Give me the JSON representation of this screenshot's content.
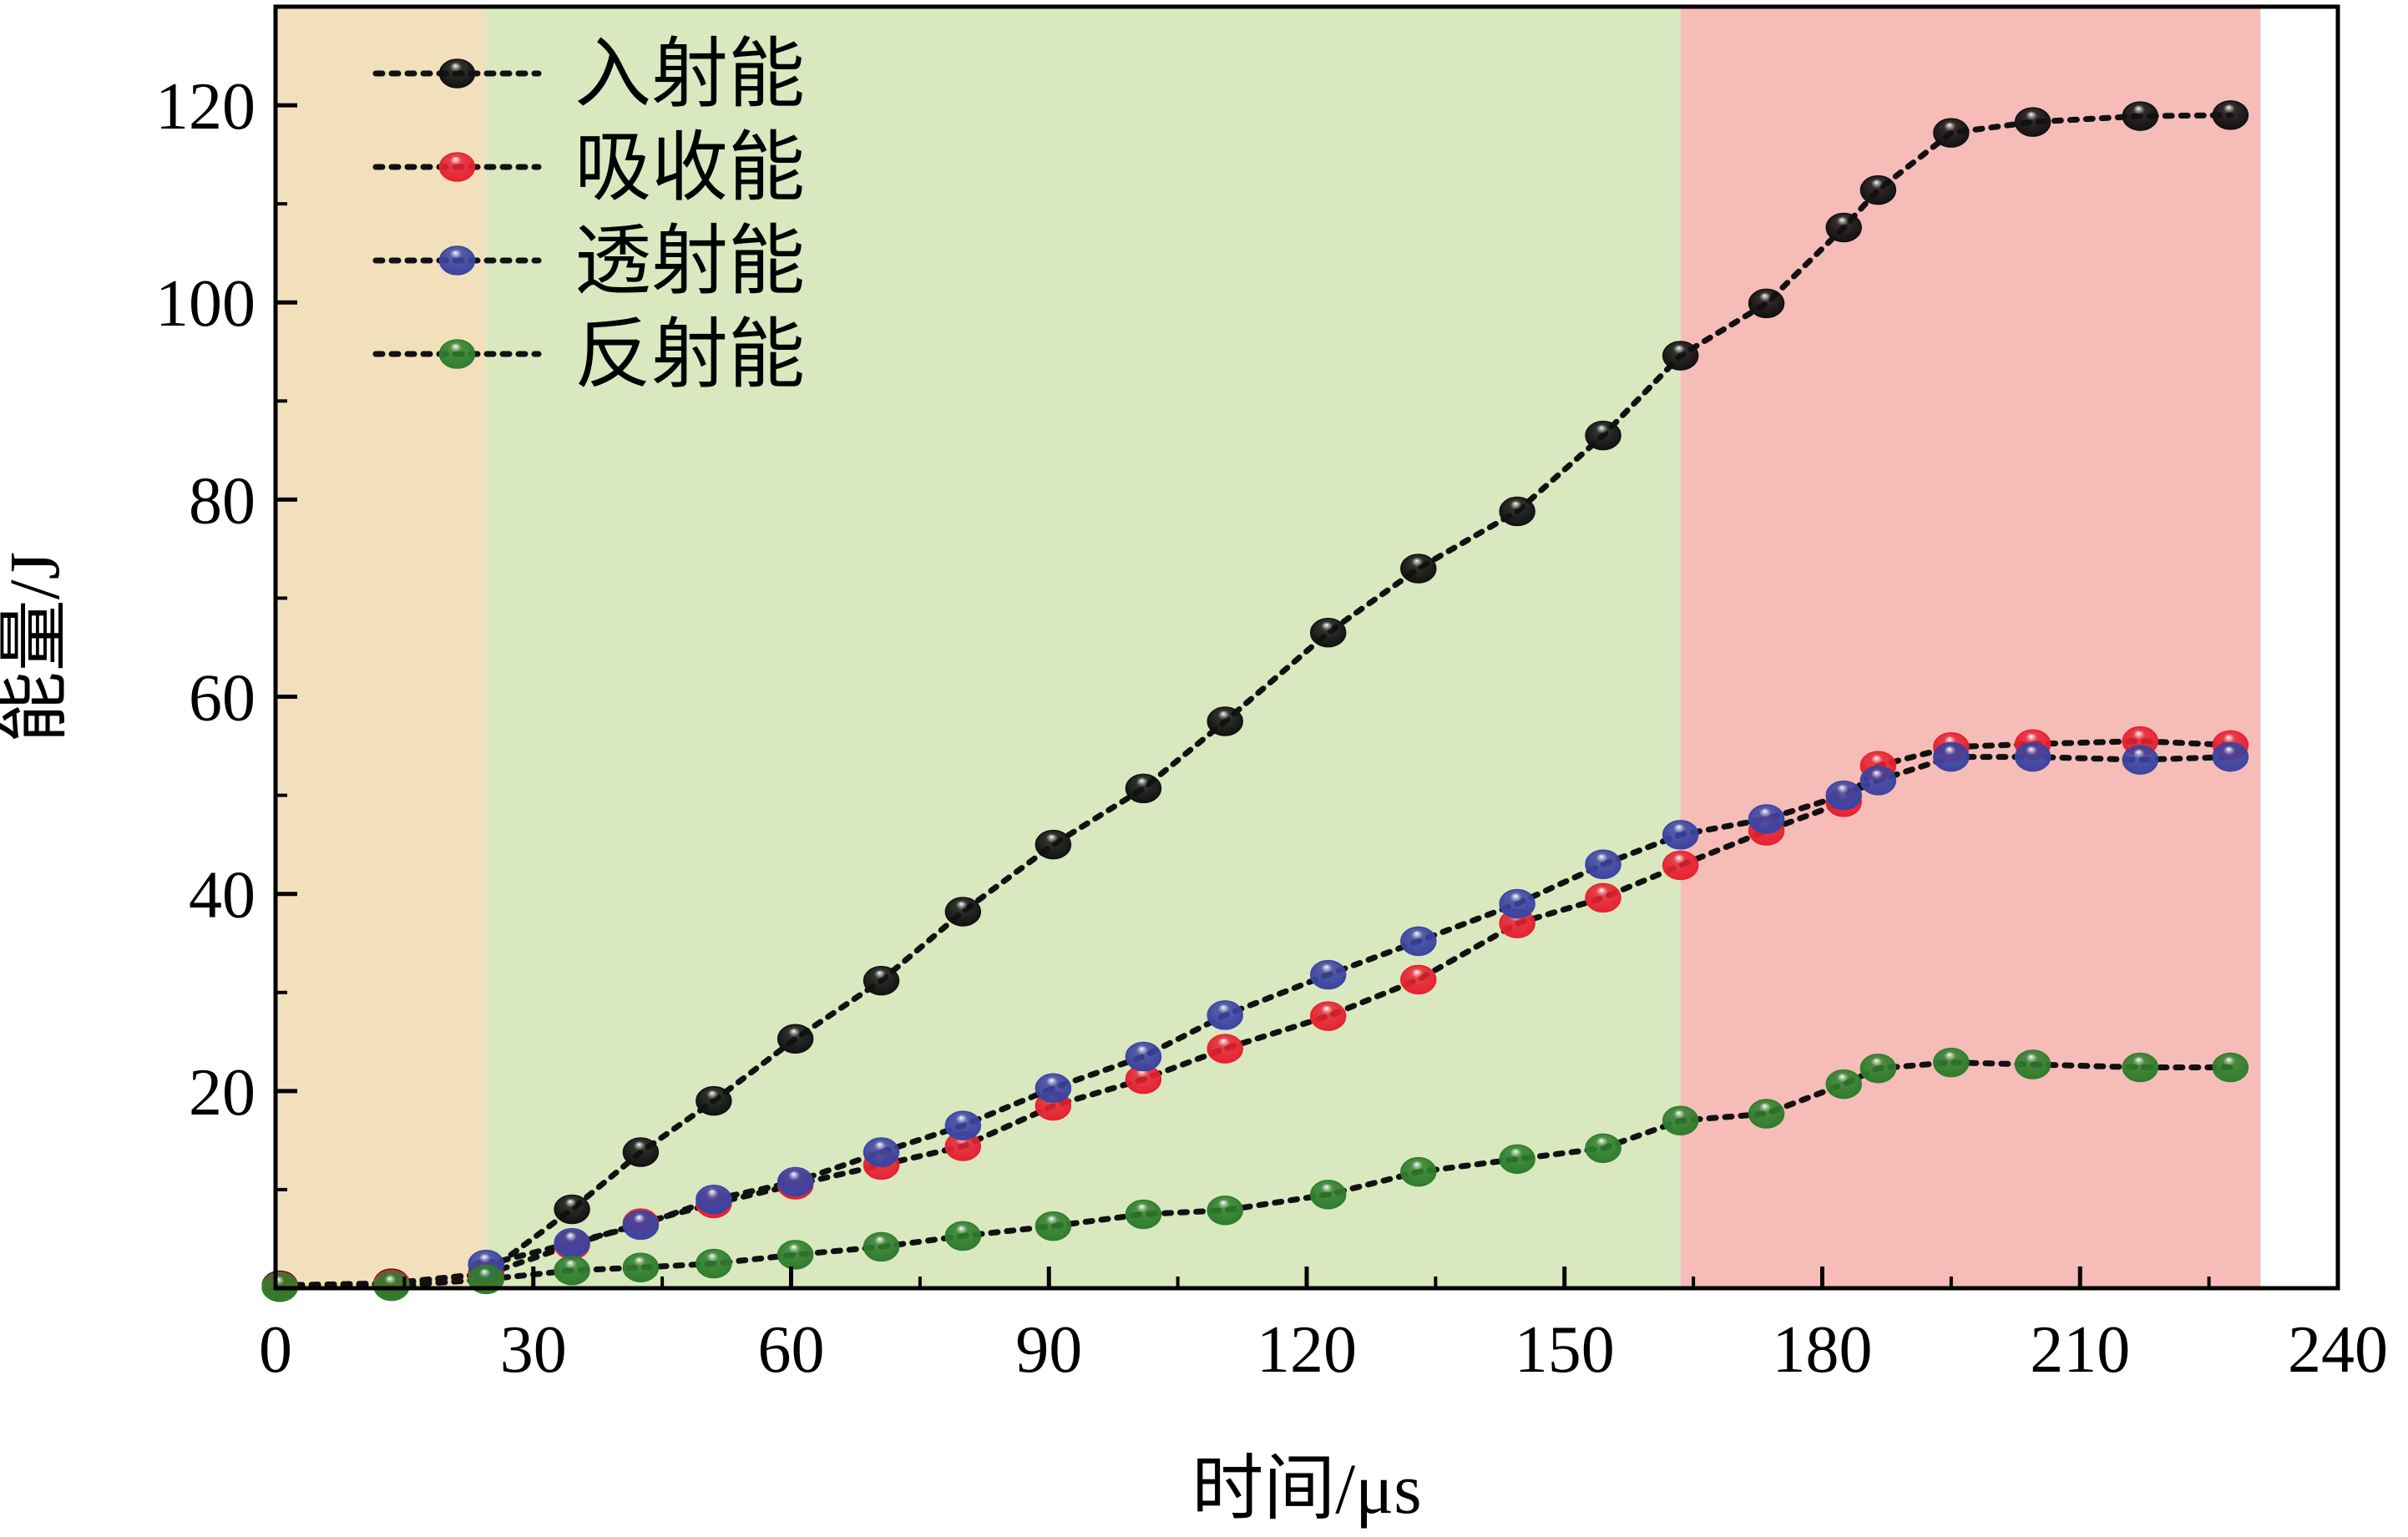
{
  "chart_data": {
    "type": "line",
    "xlabel": "时间/μs",
    "ylabel": "能量/J",
    "xlim": [
      0,
      240
    ],
    "ylim": [
      0,
      130
    ],
    "xticks": [
      0,
      30,
      60,
      90,
      120,
      150,
      180,
      210,
      240
    ],
    "yticks": [
      20,
      40,
      60,
      80,
      100,
      120
    ],
    "xtick_labels": [
      "0",
      "30",
      "60",
      "90",
      "120",
      "150",
      "180",
      "210",
      "240"
    ],
    "ytick_labels": [
      "20",
      "40",
      "60",
      "80",
      "100",
      "120"
    ],
    "grid": false,
    "legend_position": "top-left",
    "line_style": "dotted",
    "regions": [
      {
        "x_start": 0,
        "x_end": 24.5,
        "color": "#f2e0bd"
      },
      {
        "x_start": 24.5,
        "x_end": 163.5,
        "color": "#d9e8bf"
      },
      {
        "x_start": 163.5,
        "x_end": 231,
        "color": "#f6bcb7"
      }
    ],
    "series": [
      {
        "name": "入射能",
        "color": "#111111",
        "x": [
          0.5,
          13.5,
          24.5,
          34.5,
          42.5,
          51,
          60.5,
          70.5,
          80,
          90.5,
          101,
          110.5,
          122.5,
          133,
          144.5,
          154.5,
          163.5,
          173.5,
          182.5,
          186.5,
          195,
          204.5,
          217,
          227.5
        ],
        "y": [
          0.3,
          0.5,
          1.5,
          8.0,
          13.8,
          19.0,
          25.3,
          31.2,
          38.2,
          45.0,
          50.7,
          57.5,
          66.5,
          73.0,
          78.8,
          86.5,
          94.6,
          99.9,
          107.6,
          111.4,
          117.2,
          118.3,
          118.9,
          119.0
        ]
      },
      {
        "name": "吸收能",
        "color": "#e52231",
        "x": [
          0.5,
          13.5,
          24.5,
          34.5,
          42.5,
          51,
          60.5,
          70.5,
          80,
          90.5,
          101,
          110.5,
          122.5,
          133,
          144.5,
          154.5,
          163.5,
          173.5,
          182.5,
          186.5,
          195,
          204.5,
          217,
          227.5
        ],
        "y": [
          0.2,
          0.4,
          1.4,
          4.4,
          6.6,
          8.6,
          10.5,
          12.5,
          14.4,
          18.5,
          21.2,
          24.3,
          27.6,
          31.3,
          37.0,
          39.6,
          42.9,
          46.4,
          49.3,
          53.0,
          54.9,
          55.2,
          55.5,
          55.1
        ]
      },
      {
        "name": "透射能",
        "color": "#3b44a1",
        "x": [
          24.5,
          34.5,
          42.5,
          51,
          60.5,
          70.5,
          80,
          90.5,
          101,
          110.5,
          122.5,
          133,
          144.5,
          154.5,
          163.5,
          173.5,
          182.5,
          186.5,
          195,
          204.5,
          217,
          227.5
        ],
        "y": [
          2.4,
          4.6,
          6.4,
          9.0,
          10.8,
          13.8,
          16.5,
          20.3,
          23.5,
          27.7,
          31.8,
          35.2,
          39.0,
          43.0,
          46.0,
          47.6,
          50.0,
          51.5,
          53.9,
          53.9,
          53.6,
          53.9
        ]
      },
      {
        "name": "反射能",
        "color": "#2f7d2c",
        "x": [
          0.5,
          13.5,
          24.5,
          34.5,
          42.5,
          51,
          60.5,
          70.5,
          80,
          90.5,
          101,
          110.5,
          122.5,
          133,
          144.5,
          154.5,
          163.5,
          173.5,
          182.5,
          186.5,
          195,
          204.5,
          217,
          227.5
        ],
        "y": [
          0.1,
          0.2,
          0.9,
          1.8,
          2.1,
          2.5,
          3.4,
          4.2,
          5.3,
          6.3,
          7.5,
          7.9,
          9.5,
          11.8,
          13.1,
          14.2,
          17.0,
          17.7,
          20.7,
          22.3,
          22.9,
          22.7,
          22.4,
          22.4
        ]
      }
    ]
  }
}
